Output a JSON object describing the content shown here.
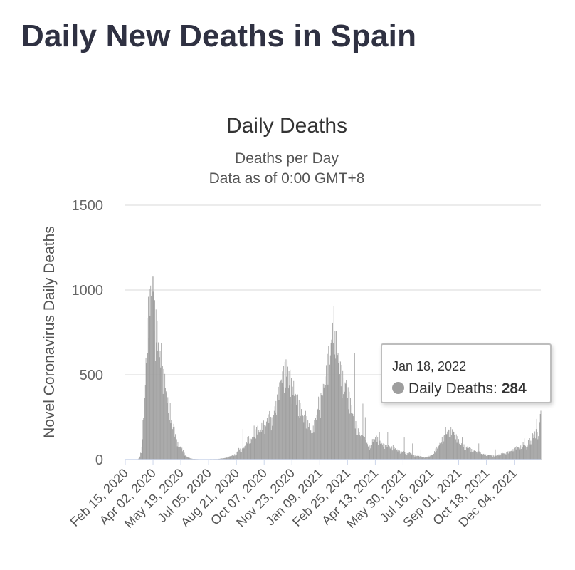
{
  "page_title": "Daily New Deaths in Spain",
  "tooltip": {
    "date": "Jan 18, 2022",
    "series_label": "Daily Deaths:",
    "value": "284"
  },
  "chart_data": {
    "type": "bar",
    "title": "Daily Deaths",
    "subtitle": "Deaths per Day",
    "subtitle2": "Data as of 0:00 GMT+8",
    "ylabel": "Novel Coronavirus Daily Deaths",
    "xlabel": "",
    "ylim": [
      0,
      1500
    ],
    "yticks": [
      0,
      500,
      1000,
      1500
    ],
    "x_range": [
      "2020-02-15",
      "2022-01-18"
    ],
    "xtick_labels": [
      "Feb 15, 2020",
      "Apr 02, 2020",
      "May 19, 2020",
      "Jul 05, 2020",
      "Aug 21, 2020",
      "Oct 07, 2020",
      "Nov 23, 2020",
      "Jan 09, 2021",
      "Feb 25, 2021",
      "Apr 13, 2021",
      "May 30, 2021",
      "Jul 16, 2021",
      "Sep 01, 2021",
      "Oct 18, 2021",
      "Dec 04, 2021"
    ],
    "bar_color": "#9e9e9e",
    "grid": true,
    "legend": "none",
    "series": [
      {
        "name": "Daily Deaths",
        "points": [
          [
            "2020-02-15",
            0
          ],
          [
            "2020-03-05",
            0
          ],
          [
            "2020-03-08",
            3
          ],
          [
            "2020-03-11",
            20
          ],
          [
            "2020-03-14",
            60
          ],
          [
            "2020-03-16",
            200
          ],
          [
            "2020-03-19",
            330
          ],
          [
            "2020-03-21",
            520
          ],
          [
            "2020-03-23",
            700
          ],
          [
            "2020-03-25",
            800
          ],
          [
            "2020-03-27",
            850
          ],
          [
            "2020-03-29",
            900
          ],
          [
            "2020-03-31",
            930
          ],
          [
            "2020-04-02",
            990
          ],
          [
            "2020-04-04",
            850
          ],
          [
            "2020-04-06",
            720
          ],
          [
            "2020-04-08",
            760
          ],
          [
            "2020-04-10",
            640
          ],
          [
            "2020-04-12",
            600
          ],
          [
            "2020-04-14",
            560
          ],
          [
            "2020-04-16",
            580
          ],
          [
            "2020-04-18",
            460
          ],
          [
            "2020-04-20",
            450
          ],
          [
            "2020-04-22",
            440
          ],
          [
            "2020-04-24",
            370
          ],
          [
            "2020-04-26",
            330
          ],
          [
            "2020-04-28",
            300
          ],
          [
            "2020-05-01",
            280
          ],
          [
            "2020-05-03",
            200
          ],
          [
            "2020-05-05",
            160
          ],
          [
            "2020-05-07",
            200
          ],
          [
            "2020-05-09",
            140
          ],
          [
            "2020-05-12",
            100
          ],
          [
            "2020-05-15",
            80
          ],
          [
            "2020-05-18",
            70
          ],
          [
            "2020-05-21",
            60
          ],
          [
            "2020-05-24",
            40
          ],
          [
            "2020-05-27",
            20
          ],
          [
            "2020-06-01",
            10
          ],
          [
            "2020-06-08",
            4
          ],
          [
            "2020-06-20",
            2
          ],
          [
            "2020-07-05",
            2
          ],
          [
            "2020-07-20",
            3
          ],
          [
            "2020-08-01",
            8
          ],
          [
            "2020-08-12",
            20
          ],
          [
            "2020-08-21",
            30
          ],
          [
            "2020-08-25",
            60
          ],
          [
            "2020-08-29",
            50
          ],
          [
            "2020-09-02",
            60
          ],
          [
            "2020-09-06",
            80
          ],
          [
            "2020-09-10",
            120
          ],
          [
            "2020-09-14",
            100
          ],
          [
            "2020-09-18",
            130
          ],
          [
            "2020-09-22",
            150
          ],
          [
            "2020-09-26",
            170
          ],
          [
            "2020-09-30",
            140
          ],
          [
            "2020-10-04",
            200
          ],
          [
            "2020-10-08",
            160
          ],
          [
            "2020-10-12",
            220
          ],
          [
            "2020-10-16",
            240
          ],
          [
            "2020-10-20",
            180
          ],
          [
            "2020-10-24",
            270
          ],
          [
            "2020-10-28",
            300
          ],
          [
            "2020-11-01",
            380
          ],
          [
            "2020-11-04",
            420
          ],
          [
            "2020-11-07",
            450
          ],
          [
            "2020-11-10",
            470
          ],
          [
            "2020-11-13",
            500
          ],
          [
            "2020-11-16",
            520
          ],
          [
            "2020-11-19",
            440
          ],
          [
            "2020-11-22",
            400
          ],
          [
            "2020-11-25",
            420
          ],
          [
            "2020-11-28",
            350
          ],
          [
            "2020-12-01",
            370
          ],
          [
            "2020-12-04",
            300
          ],
          [
            "2020-12-07",
            280
          ],
          [
            "2020-12-10",
            250
          ],
          [
            "2020-12-13",
            220
          ],
          [
            "2020-12-16",
            240
          ],
          [
            "2020-12-19",
            200
          ],
          [
            "2020-12-22",
            190
          ],
          [
            "2020-12-25",
            150
          ],
          [
            "2020-12-28",
            180
          ],
          [
            "2021-01-01",
            200
          ],
          [
            "2021-01-04",
            240
          ],
          [
            "2021-01-07",
            320
          ],
          [
            "2021-01-10",
            300
          ],
          [
            "2021-01-13",
            380
          ],
          [
            "2021-01-16",
            400
          ],
          [
            "2021-01-19",
            450
          ],
          [
            "2021-01-22",
            520
          ],
          [
            "2021-01-25",
            580
          ],
          [
            "2021-01-28",
            620
          ],
          [
            "2021-01-31",
            700
          ],
          [
            "2021-02-02",
            760
          ],
          [
            "2021-02-05",
            690
          ],
          [
            "2021-02-08",
            540
          ],
          [
            "2021-02-11",
            520
          ],
          [
            "2021-02-14",
            480
          ],
          [
            "2021-02-17",
            440
          ],
          [
            "2021-02-20",
            400
          ],
          [
            "2021-02-23",
            420
          ],
          [
            "2021-02-26",
            360
          ],
          [
            "2021-03-01",
            320
          ],
          [
            "2021-03-04",
            280
          ],
          [
            "2021-03-07",
            230
          ],
          [
            "2021-03-10",
            200
          ],
          [
            "2021-03-13",
            170
          ],
          [
            "2021-03-16",
            150
          ],
          [
            "2021-03-19",
            130
          ],
          [
            "2021-03-22",
            120
          ],
          [
            "2021-03-26",
            110
          ],
          [
            "2021-03-30",
            90
          ],
          [
            "2021-04-03",
            60
          ],
          [
            "2021-04-07",
            100
          ],
          [
            "2021-04-11",
            110
          ],
          [
            "2021-04-15",
            120
          ],
          [
            "2021-04-19",
            100
          ],
          [
            "2021-04-23",
            90
          ],
          [
            "2021-04-27",
            80
          ],
          [
            "2021-05-01",
            70
          ],
          [
            "2021-05-05",
            80
          ],
          [
            "2021-05-09",
            60
          ],
          [
            "2021-05-13",
            70
          ],
          [
            "2021-05-17",
            60
          ],
          [
            "2021-05-21",
            50
          ],
          [
            "2021-05-26",
            40
          ],
          [
            "2021-05-31",
            45
          ],
          [
            "2021-06-05",
            30
          ],
          [
            "2021-06-10",
            40
          ],
          [
            "2021-06-15",
            25
          ],
          [
            "2021-06-20",
            20
          ],
          [
            "2021-06-25",
            20
          ],
          [
            "2021-06-30",
            15
          ],
          [
            "2021-07-05",
            10
          ],
          [
            "2021-07-10",
            15
          ],
          [
            "2021-07-15",
            20
          ],
          [
            "2021-07-20",
            30
          ],
          [
            "2021-07-25",
            60
          ],
          [
            "2021-07-30",
            80
          ],
          [
            "2021-08-03",
            110
          ],
          [
            "2021-08-07",
            120
          ],
          [
            "2021-08-11",
            140
          ],
          [
            "2021-08-15",
            150
          ],
          [
            "2021-08-19",
            160
          ],
          [
            "2021-08-23",
            150
          ],
          [
            "2021-08-27",
            130
          ],
          [
            "2021-08-31",
            110
          ],
          [
            "2021-09-04",
            80
          ],
          [
            "2021-09-08",
            90
          ],
          [
            "2021-09-12",
            60
          ],
          [
            "2021-09-16",
            70
          ],
          [
            "2021-09-20",
            60
          ],
          [
            "2021-09-24",
            50
          ],
          [
            "2021-09-28",
            50
          ],
          [
            "2021-10-02",
            40
          ],
          [
            "2021-10-06",
            40
          ],
          [
            "2021-10-10",
            30
          ],
          [
            "2021-10-14",
            30
          ],
          [
            "2021-10-18",
            25
          ],
          [
            "2021-10-22",
            25
          ],
          [
            "2021-10-26",
            25
          ],
          [
            "2021-10-30",
            20
          ],
          [
            "2021-11-03",
            20
          ],
          [
            "2021-11-07",
            25
          ],
          [
            "2021-11-11",
            30
          ],
          [
            "2021-11-15",
            35
          ],
          [
            "2021-11-19",
            30
          ],
          [
            "2021-11-23",
            40
          ],
          [
            "2021-11-27",
            45
          ],
          [
            "2021-12-01",
            50
          ],
          [
            "2021-12-05",
            60
          ],
          [
            "2021-12-09",
            70
          ],
          [
            "2021-12-13",
            60
          ],
          [
            "2021-12-17",
            80
          ],
          [
            "2021-12-21",
            90
          ],
          [
            "2021-12-25",
            60
          ],
          [
            "2021-12-29",
            110
          ],
          [
            "2022-01-02",
            90
          ],
          [
            "2022-01-06",
            130
          ],
          [
            "2022-01-10",
            150
          ],
          [
            "2022-01-14",
            120
          ],
          [
            "2022-01-18",
            284
          ]
        ],
        "spikes": [
          [
            "2020-04-02",
            990
          ],
          [
            "2020-09-01",
            180
          ],
          [
            "2020-09-20",
            200
          ],
          [
            "2020-10-06",
            230
          ],
          [
            "2020-10-20",
            250
          ],
          [
            "2020-11-03",
            360
          ],
          [
            "2020-11-17",
            420
          ],
          [
            "2020-11-20",
            530
          ],
          [
            "2020-11-24",
            430
          ],
          [
            "2020-12-01",
            320
          ],
          [
            "2020-12-15",
            290
          ],
          [
            "2020-12-29",
            200
          ],
          [
            "2021-01-12",
            380
          ],
          [
            "2021-01-26",
            560
          ],
          [
            "2021-02-04",
            760
          ],
          [
            "2021-02-09",
            630
          ],
          [
            "2021-02-23",
            470
          ],
          [
            "2021-03-09",
            630
          ],
          [
            "2021-03-23",
            330
          ],
          [
            "2021-03-27",
            250
          ],
          [
            "2021-04-06",
            580
          ],
          [
            "2021-04-20",
            160
          ],
          [
            "2021-05-04",
            160
          ],
          [
            "2021-05-18",
            170
          ],
          [
            "2021-06-01",
            130
          ],
          [
            "2021-06-15",
            95
          ],
          [
            "2021-06-29",
            60
          ],
          [
            "2021-08-10",
            190
          ],
          [
            "2021-08-17",
            175
          ],
          [
            "2021-09-07",
            130
          ],
          [
            "2021-10-05",
            95
          ],
          [
            "2021-11-02",
            60
          ],
          [
            "2021-12-21",
            125
          ],
          [
            "2022-01-04",
            155
          ],
          [
            "2022-01-11",
            240
          ]
        ]
      }
    ]
  }
}
